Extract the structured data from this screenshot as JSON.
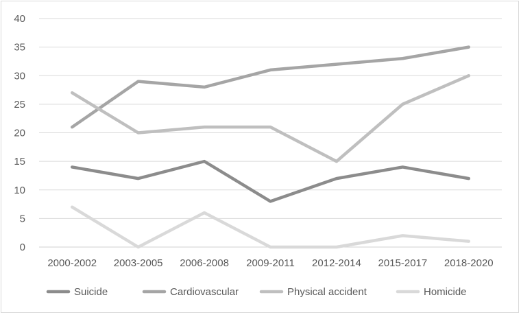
{
  "chart_data": {
    "type": "line",
    "title": "",
    "xlabel": "",
    "ylabel": "",
    "categories": [
      "2000-2002",
      "2003-2005",
      "2006-2008",
      "2009-2011",
      "2012-2014",
      "2015-2017",
      "2018-2020"
    ],
    "ylim": [
      0,
      40
    ],
    "yticks": [
      "0",
      "5",
      "10",
      "15",
      "20",
      "25",
      "30",
      "35",
      "40"
    ],
    "grid": true,
    "legend_position": "bottom",
    "series": [
      {
        "name": "Suicide",
        "values": [
          14,
          12,
          15,
          8,
          12,
          14,
          12
        ],
        "color": "#8c8c8c"
      },
      {
        "name": "Cardiovascular",
        "values": [
          21,
          29,
          28,
          31,
          32,
          33,
          35
        ],
        "color": "#a5a5a5"
      },
      {
        "name": "Physical accident",
        "values": [
          27,
          20,
          21,
          21,
          15,
          25,
          30
        ],
        "color": "#bfbfbf"
      },
      {
        "name": "Homicide",
        "values": [
          7,
          0,
          6,
          0,
          0,
          2,
          1
        ],
        "color": "#d9d9d9"
      }
    ]
  }
}
